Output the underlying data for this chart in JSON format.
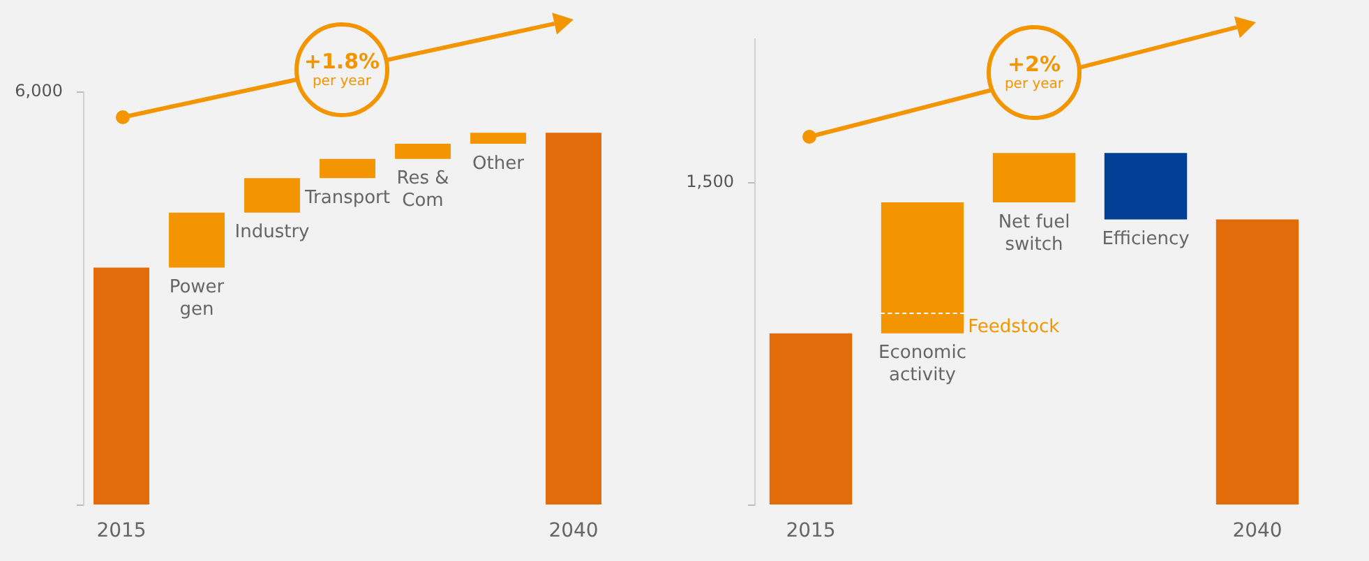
{
  "chart_data": [
    {
      "type": "bar",
      "categories": [
        "2015",
        "Power gen",
        "Industry",
        "Transport",
        "Res & Com",
        "Other",
        "2040"
      ],
      "values": [
        3450,
        800,
        500,
        280,
        220,
        160,
        5410
      ],
      "base": [
        0,
        3450,
        4250,
        4750,
        5030,
        5250,
        0
      ],
      "colors": [
        "#e36c0a",
        "#f39500",
        "#f39500",
        "#f39500",
        "#f39500",
        "#f39500",
        "#e36c0a"
      ],
      "ylim": [
        0,
        6000
      ],
      "yticks": [
        {
          "value": 0,
          "label": null
        },
        6000
      ],
      "annotations": [
        "+1.8%",
        "per year"
      ]
    },
    {
      "type": "bar",
      "categories": [
        "2015",
        "Economic activity",
        "Net fuel switch",
        "Efficiency",
        "2040"
      ],
      "values": [
        800,
        610,
        230,
        -310,
        1330
      ],
      "base": [
        0,
        800,
        1410,
        1640,
        0
      ],
      "colors": [
        "#e36c0a",
        "#f39500",
        "#f39500",
        "#003f93",
        "#e36c0a"
      ],
      "ylim": [
        0,
        2170
      ],
      "yticks": [
        {
          "value": 0,
          "label": null
        },
        1500
      ],
      "annotations": [
        "+2%",
        "per year",
        {
          "text": "Feedstock",
          "x": "Economic activity",
          "y": 800
        }
      ]
    }
  ]
}
